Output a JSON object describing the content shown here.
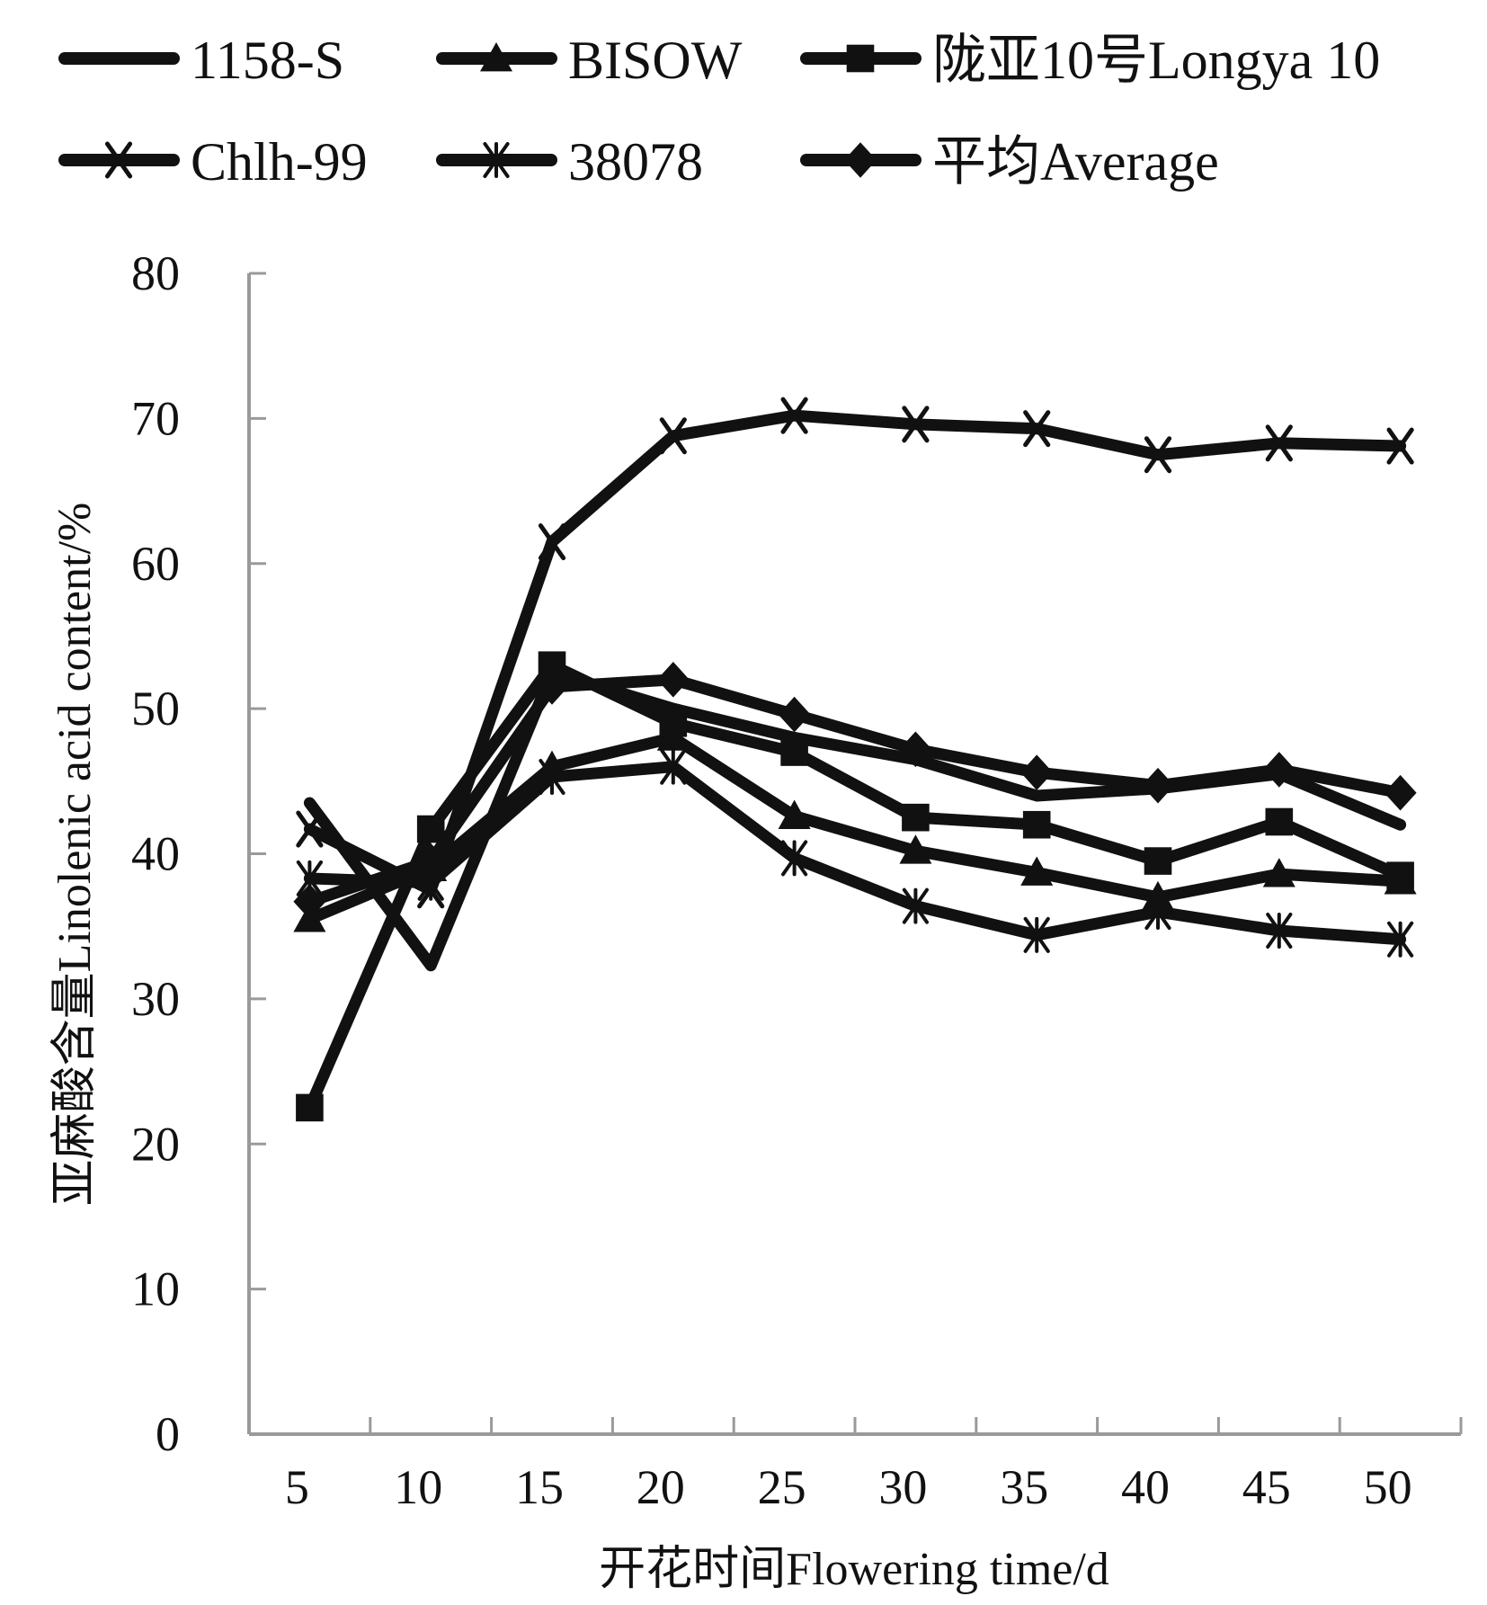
{
  "chart_data": {
    "type": "line",
    "title": "",
    "xlabel": "开花时间Flowering time/d",
    "ylabel": "亚麻酸含量Linolenic acid content/%",
    "x": [
      5,
      10,
      15,
      20,
      25,
      30,
      35,
      40,
      45,
      50
    ],
    "x_tick_labels": [
      "5",
      "10",
      "15",
      "20",
      "25",
      "30",
      "35",
      "40",
      "45",
      "50"
    ],
    "ylim": [
      0,
      80
    ],
    "y_ticks": [
      0,
      10,
      20,
      30,
      40,
      50,
      60,
      70,
      80
    ],
    "y_tick_labels": [
      "0",
      "10",
      "20",
      "30",
      "40",
      "50",
      "60",
      "70",
      "80"
    ],
    "grid": false,
    "legend_position": "top",
    "series": [
      {
        "name": "1158-S",
        "marker": "none",
        "color": "#111111",
        "values": [
          43.5,
          32.3,
          52.5,
          50.0,
          48.0,
          46.5,
          44.0,
          44.5,
          45.5,
          42.0
        ]
      },
      {
        "name": "BISOW",
        "marker": "triangle",
        "color": "#111111",
        "values": [
          35.5,
          39.0,
          46.0,
          48.0,
          42.6,
          40.2,
          38.7,
          37.0,
          38.6,
          38.1
        ]
      },
      {
        "name": "陇亚10号Longya 10",
        "marker": "square",
        "color": "#111111",
        "values": [
          22.5,
          41.7,
          53.0,
          49.0,
          47.0,
          42.5,
          42.0,
          39.5,
          42.2,
          38.5
        ]
      },
      {
        "name": "Chlh-99",
        "marker": "x",
        "color": "#111111",
        "values": [
          41.7,
          37.5,
          61.5,
          68.8,
          70.2,
          69.6,
          69.3,
          67.5,
          68.3,
          68.1
        ]
      },
      {
        "name": "38078",
        "marker": "asterisk",
        "color": "#111111",
        "values": [
          38.3,
          38.0,
          45.3,
          46.0,
          39.7,
          36.4,
          34.4,
          36.0,
          34.7,
          34.1
        ]
      },
      {
        "name": "平均Average",
        "marker": "diamond",
        "color": "#111111",
        "values": [
          36.7,
          39.5,
          51.5,
          52.0,
          49.6,
          47.2,
          45.6,
          44.7,
          45.8,
          44.2
        ]
      }
    ],
    "axis_color": "#9a9a9a"
  }
}
